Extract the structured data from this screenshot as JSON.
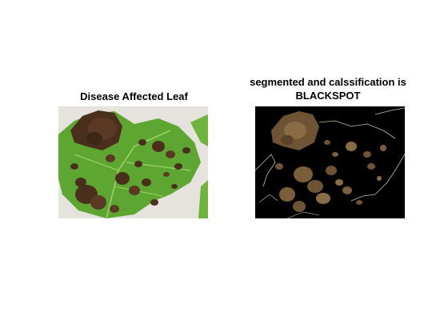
{
  "figure": {
    "left_panel": {
      "title": "Disease Affected Leaf",
      "image_subject": "leaf-with-black-spots"
    },
    "right_panel": {
      "title_line1": "segmented and calssification is",
      "title_line2": "BLACKSPOT",
      "image_subject": "segmented-lesions-on-black"
    },
    "colors": {
      "background": "#ffffff",
      "leaf_green": "#5fa832",
      "leaf_backdrop": "#e4e0dc",
      "lesion_dark": "#4a2f1e",
      "lesion_mid": "#7a5a3a",
      "segment_bg": "#000000",
      "segment_edge": "#c8c0a0"
    }
  }
}
